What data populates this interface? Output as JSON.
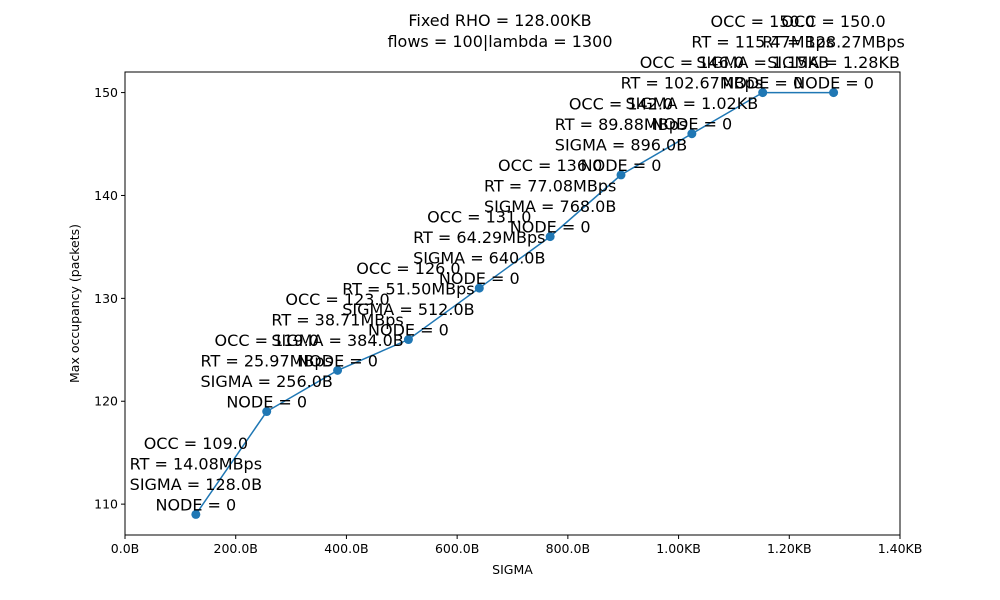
{
  "chart_data": {
    "type": "line",
    "title": [
      "Fixed RHO = 128.00KB",
      "flows = 100|lambda = 1300"
    ],
    "xlabel": "SIGMA",
    "ylabel": "Max occupancy (packets)",
    "xlim": [
      0,
      1400
    ],
    "ylim": [
      107,
      152
    ],
    "x_ticks": [
      {
        "value": 0,
        "label": "0.0B"
      },
      {
        "value": 200,
        "label": "200.0B"
      },
      {
        "value": 400,
        "label": "400.0B"
      },
      {
        "value": 600,
        "label": "600.0B"
      },
      {
        "value": 800,
        "label": "800.0B"
      },
      {
        "value": 1000,
        "label": "1.00KB"
      },
      {
        "value": 1200,
        "label": "1.20KB"
      },
      {
        "value": 1400,
        "label": "1.40KB"
      }
    ],
    "y_ticks": [
      {
        "value": 110,
        "label": "110"
      },
      {
        "value": 120,
        "label": "120"
      },
      {
        "value": 130,
        "label": "130"
      },
      {
        "value": 140,
        "label": "140"
      },
      {
        "value": 150,
        "label": "150"
      }
    ],
    "grid": false,
    "color": "#1f77b4",
    "series": [
      {
        "x": [
          128,
          256,
          384,
          512,
          640,
          768,
          896,
          1024,
          1152,
          1280
        ],
        "y": [
          109,
          119,
          123,
          126,
          131,
          136,
          142,
          146,
          150,
          150
        ],
        "annotations": [
          [
            "OCC = 109.0",
            "RT = 14.08MBps",
            "SIGMA = 128.0B",
            "NODE = 0"
          ],
          [
            "OCC = 119.0",
            "RT = 25.97MBps",
            "SIGMA = 256.0B",
            "NODE = 0"
          ],
          [
            "OCC = 123.0",
            "RT = 38.71MBps",
            "SIGMA = 384.0B",
            "NODE = 0"
          ],
          [
            "OCC = 126.0",
            "RT = 51.50MBps",
            "SIGMA = 512.0B",
            "NODE = 0"
          ],
          [
            "OCC = 131.0",
            "RT = 64.29MBps",
            "SIGMA = 640.0B",
            "NODE = 0"
          ],
          [
            "OCC = 136.0",
            "RT = 77.08MBps",
            "SIGMA = 768.0B",
            "NODE = 0"
          ],
          [
            "OCC = 142.0",
            "RT = 89.88MBps",
            "SIGMA = 896.0B",
            "NODE = 0"
          ],
          [
            "OCC = 146.0",
            "RT = 102.67MBps",
            "SIGMA = 1.02KB",
            "NODE = 0"
          ],
          [
            "OCC = 150.0",
            "RT = 115.47MBps",
            "SIGMA = 1.15KB",
            "NODE = 0"
          ],
          [
            "OCC = 150.0",
            "RT = 128.27MBps",
            "SIGMA = 1.28KB",
            "NODE = 0"
          ]
        ]
      }
    ]
  }
}
